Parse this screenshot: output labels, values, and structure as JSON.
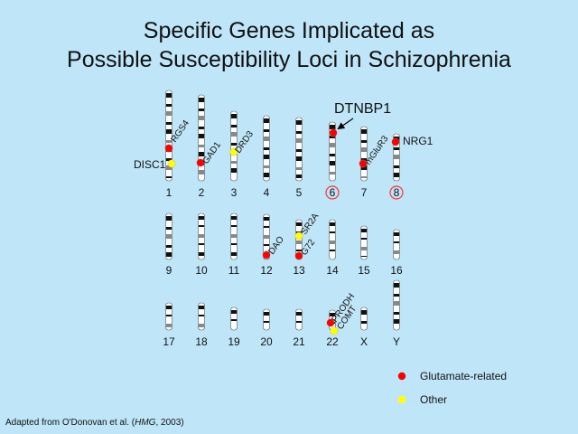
{
  "slide": {
    "title_line1": "Specific Genes Implicated as",
    "title_line2": "Possible Susceptibility Loci in Schizophrenia",
    "footnote_prefix": "Adapted from O'Donovan et al. (",
    "footnote_journal": "HMG",
    "footnote_suffix": ", 2003)",
    "callout_gene": "DTNBP1"
  },
  "colors": {
    "background": "#bfe6f8",
    "glutamate": "#ff0000",
    "other": "#ffff00",
    "highlight_circle": "#ff3333"
  },
  "chromosomes": [
    {
      "label": "1",
      "highlighted": false
    },
    {
      "label": "2",
      "highlighted": false
    },
    {
      "label": "3",
      "highlighted": false
    },
    {
      "label": "4",
      "highlighted": false
    },
    {
      "label": "5",
      "highlighted": false
    },
    {
      "label": "6",
      "highlighted": true
    },
    {
      "label": "7",
      "highlighted": false
    },
    {
      "label": "8",
      "highlighted": true
    },
    {
      "label": "9",
      "highlighted": false
    },
    {
      "label": "10",
      "highlighted": false
    },
    {
      "label": "11",
      "highlighted": false
    },
    {
      "label": "12",
      "highlighted": false
    },
    {
      "label": "13",
      "highlighted": false
    },
    {
      "label": "14",
      "highlighted": false
    },
    {
      "label": "15",
      "highlighted": false
    },
    {
      "label": "16",
      "highlighted": false
    },
    {
      "label": "17",
      "highlighted": false
    },
    {
      "label": "18",
      "highlighted": false
    },
    {
      "label": "19",
      "highlighted": false
    },
    {
      "label": "20",
      "highlighted": false
    },
    {
      "label": "21",
      "highlighted": false
    },
    {
      "label": "22",
      "highlighted": false
    },
    {
      "label": "X",
      "highlighted": false
    },
    {
      "label": "Y",
      "highlighted": false
    }
  ],
  "genes": [
    {
      "name": "RGS4",
      "chromosome": "1",
      "category": "glutamate"
    },
    {
      "name": "DISC1",
      "chromosome": "1",
      "category": "other"
    },
    {
      "name": "GAD1",
      "chromosome": "2",
      "category": "glutamate"
    },
    {
      "name": "DRD3",
      "chromosome": "3",
      "category": "other"
    },
    {
      "name": "DTNBP1",
      "chromosome": "6",
      "category": "glutamate"
    },
    {
      "name": "mGluR3",
      "chromosome": "7",
      "category": "glutamate"
    },
    {
      "name": "NRG1",
      "chromosome": "8",
      "category": "glutamate"
    },
    {
      "name": "DAO",
      "chromosome": "12",
      "category": "glutamate"
    },
    {
      "name": "SR2A",
      "chromosome": "13",
      "category": "other"
    },
    {
      "name": "G72",
      "chromosome": "13",
      "category": "glutamate"
    },
    {
      "name": "PRODH",
      "chromosome": "22",
      "category": "glutamate"
    },
    {
      "name": "COMT",
      "chromosome": "22",
      "category": "other"
    }
  ],
  "legend": [
    {
      "label": "Glutamate-related",
      "category": "glutamate"
    },
    {
      "label": "Other",
      "category": "other"
    }
  ]
}
